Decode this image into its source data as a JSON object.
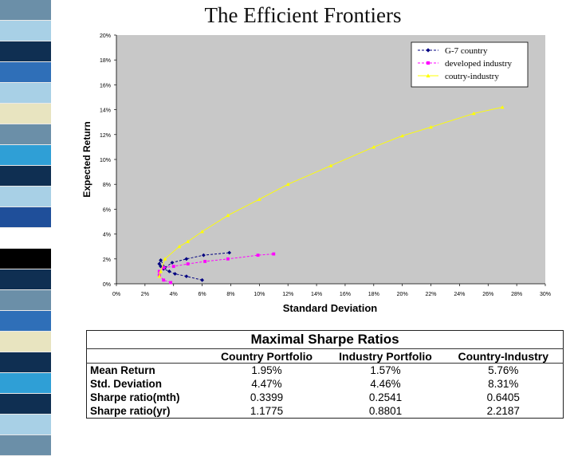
{
  "slide": {
    "title": "The Efficient Frontiers",
    "stripe_colors": [
      "#6b8fa8",
      "#a8d0e6",
      "#0f2f52",
      "#2f6fb8",
      "#a8d0e6",
      "#e8e4c0",
      "#6b8fa8",
      "#2f9fd6",
      "#0f2f52",
      "#a8d0e6",
      "#1f4f9a",
      "#ffffff",
      "#000000",
      "#0f2f52",
      "#6b8fa8",
      "#2f6fb8",
      "#e8e4c0",
      "#0f2f52",
      "#2f9fd6",
      "#0f2f52",
      "#a8d0e6",
      "#6b8fa8"
    ]
  },
  "chart_data": {
    "type": "line",
    "title": "",
    "xlabel": "Standard Deviation",
    "ylabel": "Expected Return",
    "xlim": [
      0,
      30
    ],
    "ylim": [
      0,
      20
    ],
    "x_ticks": [
      "0%",
      "2%",
      "4%",
      "6%",
      "8%",
      "10%",
      "12%",
      "14%",
      "16%",
      "18%",
      "20%",
      "22%",
      "24%",
      "26%",
      "28%",
      "30%"
    ],
    "y_ticks": [
      "0%",
      "2%",
      "4%",
      "6%",
      "8%",
      "10%",
      "12%",
      "14%",
      "16%",
      "18%",
      "20%"
    ],
    "grid": false,
    "legend_position": "top-right",
    "plot_background": "#c8c8c8",
    "series": [
      {
        "name": "G-7 country",
        "color": "#000080",
        "marker": "diamond",
        "dashed": true,
        "x": [
          6.0,
          4.9,
          4.1,
          3.7,
          3.3,
          3.1,
          3.0,
          3.1,
          3.4,
          3.9,
          4.9,
          6.1,
          7.9
        ],
        "y": [
          0.3,
          0.6,
          0.8,
          1.0,
          1.2,
          1.4,
          1.6,
          1.9,
          1.3,
          1.7,
          2.0,
          2.3,
          2.5
        ]
      },
      {
        "name": "developed industry",
        "color": "#ff00ff",
        "marker": "square",
        "dashed": true,
        "x": [
          3.8,
          3.3,
          3.0,
          3.0,
          3.3,
          4.0,
          5.0,
          6.2,
          7.8,
          9.9,
          11.0
        ],
        "y": [
          0.1,
          0.3,
          0.7,
          1.0,
          1.3,
          1.4,
          1.6,
          1.8,
          2.0,
          2.3,
          2.4
        ]
      },
      {
        "name": "coutry-industry",
        "color": "#ffff00",
        "marker": "triangle",
        "dashed": false,
        "x": [
          3.0,
          3.1,
          3.4,
          4.4,
          5.0,
          6.0,
          7.8,
          10.0,
          12.0,
          15.0,
          18.0,
          20.0,
          22.0,
          25.0,
          27.0
        ],
        "y": [
          0.6,
          1.0,
          2.0,
          3.0,
          3.4,
          4.2,
          5.5,
          6.8,
          8.0,
          9.5,
          11.0,
          11.9,
          12.6,
          13.7,
          14.2
        ]
      }
    ]
  },
  "sharpe_table": {
    "caption": "Maximal Sharpe Ratios",
    "columns": [
      "",
      "Country Portfolio",
      "Industry Portfolio",
      "Country-Industry"
    ],
    "rows": [
      {
        "label": "Mean Return",
        "values": [
          "1.95%",
          "1.57%",
          "5.76%"
        ]
      },
      {
        "label": "Std. Deviation",
        "values": [
          "4.47%",
          "4.46%",
          "8.31%"
        ]
      },
      {
        "label": "Sharpe ratio(mth)",
        "values": [
          "0.3399",
          "0.2541",
          "0.6405"
        ]
      },
      {
        "label": "Sharpe ratio(yr)",
        "values": [
          "1.1775",
          "0.8801",
          "2.2187"
        ]
      }
    ]
  }
}
